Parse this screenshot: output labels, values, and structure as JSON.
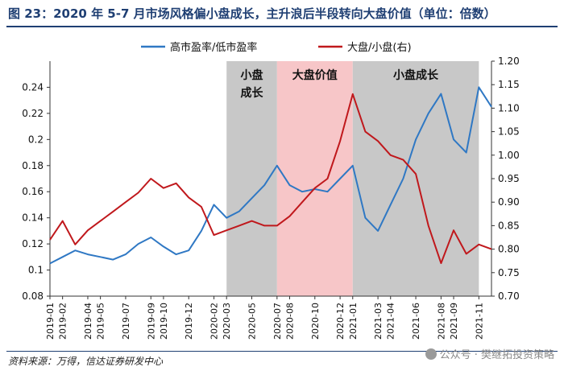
{
  "title": "图 23：2020 年 5-7 月市场风格偏小盘成长，主升浪后半段转向大盘价值（单位：倍数）",
  "source": "资料来源：万得，信达证券研发中心",
  "watermark": "公众号 · 樊继拓投资策略",
  "chart_data": {
    "type": "line",
    "title": "",
    "left_axis": {
      "ticks": [
        0.08,
        0.1,
        0.12,
        0.14,
        0.16,
        0.18,
        0.2,
        0.22,
        0.24
      ],
      "ylim": [
        0.08,
        0.26
      ]
    },
    "right_axis": {
      "ticks": [
        0.7,
        0.75,
        0.8,
        0.85,
        0.9,
        0.95,
        1.0,
        1.05,
        1.1,
        1.15,
        1.2
      ],
      "ylim": [
        0.7,
        1.2
      ]
    },
    "x_ticks": [
      "2019-01",
      "2019-02",
      "2019-04",
      "2019-05",
      "2019-07",
      "2019-09",
      "2019-10",
      "2019-12",
      "2020-02",
      "2020-03",
      "2020-05",
      "2020-07",
      "2020-08",
      "2020-10",
      "2020-12",
      "2021-01",
      "2021-03",
      "2021-04",
      "2021-06",
      "2021-08",
      "2021-09",
      "2021-11"
    ],
    "shaded_regions": [
      {
        "label": "小盘\n成长",
        "from": "2020-03",
        "to": "2020-07",
        "color": "#c8c8c8"
      },
      {
        "label": "大盘价值",
        "from": "2020-07",
        "to": "2021-01",
        "color": "#f7c6c8"
      },
      {
        "label": "小盘成长",
        "from": "2021-01",
        "to": "2021-11",
        "color": "#c8c8c8"
      }
    ],
    "series": [
      {
        "name": "高市盈率/低市盈率",
        "axis": "left",
        "color": "#2f78c4",
        "x": [
          "2019-01",
          "2019-02",
          "2019-03",
          "2019-04",
          "2019-05",
          "2019-06",
          "2019-07",
          "2019-08",
          "2019-09",
          "2019-10",
          "2019-11",
          "2019-12",
          "2020-01",
          "2020-02",
          "2020-03",
          "2020-04",
          "2020-05",
          "2020-06",
          "2020-07",
          "2020-08",
          "2020-09",
          "2020-10",
          "2020-11",
          "2020-12",
          "2021-01",
          "2021-02",
          "2021-03",
          "2021-04",
          "2021-05",
          "2021-06",
          "2021-07",
          "2021-08",
          "2021-09",
          "2021-10",
          "2021-11",
          "2021-12"
        ],
        "values": [
          0.105,
          0.11,
          0.115,
          0.112,
          0.11,
          0.108,
          0.112,
          0.12,
          0.125,
          0.118,
          0.112,
          0.115,
          0.13,
          0.15,
          0.14,
          0.145,
          0.155,
          0.165,
          0.18,
          0.165,
          0.16,
          0.162,
          0.16,
          0.17,
          0.18,
          0.14,
          0.13,
          0.15,
          0.17,
          0.2,
          0.22,
          0.235,
          0.2,
          0.19,
          0.24,
          0.225
        ]
      },
      {
        "name": "大盘/小盘(右)",
        "axis": "right",
        "color": "#c0181c",
        "x": [
          "2019-01",
          "2019-02",
          "2019-03",
          "2019-04",
          "2019-05",
          "2019-06",
          "2019-07",
          "2019-08",
          "2019-09",
          "2019-10",
          "2019-11",
          "2019-12",
          "2020-01",
          "2020-02",
          "2020-03",
          "2020-04",
          "2020-05",
          "2020-06",
          "2020-07",
          "2020-08",
          "2020-09",
          "2020-10",
          "2020-11",
          "2020-12",
          "2021-01",
          "2021-02",
          "2021-03",
          "2021-04",
          "2021-05",
          "2021-06",
          "2021-07",
          "2021-08",
          "2021-09",
          "2021-10",
          "2021-11",
          "2021-12"
        ],
        "values": [
          0.82,
          0.86,
          0.81,
          0.84,
          0.86,
          0.88,
          0.9,
          0.92,
          0.95,
          0.93,
          0.94,
          0.91,
          0.89,
          0.83,
          0.84,
          0.85,
          0.86,
          0.85,
          0.85,
          0.87,
          0.9,
          0.93,
          0.95,
          1.03,
          1.13,
          1.05,
          1.03,
          1.0,
          0.99,
          0.96,
          0.85,
          0.77,
          0.84,
          0.79,
          0.81,
          0.8
        ]
      }
    ]
  }
}
